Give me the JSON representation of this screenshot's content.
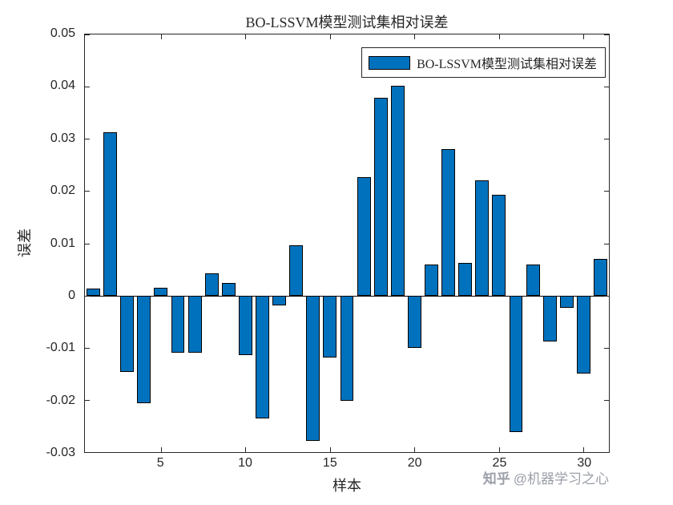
{
  "title": "BO-LSSVM模型测试集相对误差",
  "axes": {
    "xlabel": "样本",
    "ylabel": "误差"
  },
  "legend": {
    "label": "BO-LSSVM模型测试集相对误差"
  },
  "watermark": {
    "brand": "知乎",
    "handle": "@机器学习之心"
  },
  "colors": {
    "bar_fill": "#0072BD",
    "bar_edge": "#000000",
    "axis": "#262626",
    "watermark": "#9b9fa8"
  },
  "chart_data": {
    "type": "bar",
    "title": "BO-LSSVM模型测试集相对误差",
    "xlabel": "样本",
    "ylabel": "误差",
    "legend_entries": [
      "BO-LSSVM模型测试集相对误差"
    ],
    "legend_position": "top-right",
    "grid": false,
    "xlim": [
      0.5,
      31.5
    ],
    "ylim": [
      -0.03,
      0.05
    ],
    "bar_width": 0.8,
    "x": [
      1,
      2,
      3,
      4,
      5,
      6,
      7,
      8,
      9,
      10,
      11,
      12,
      13,
      14,
      15,
      16,
      17,
      18,
      19,
      20,
      21,
      22,
      23,
      24,
      25,
      26,
      27,
      28,
      29,
      30,
      31
    ],
    "values": [
      0.0013,
      0.0313,
      -0.0146,
      -0.0206,
      0.0015,
      -0.0109,
      -0.0109,
      0.0042,
      0.0024,
      -0.0114,
      -0.0235,
      -0.0019,
      0.0096,
      -0.0279,
      -0.0119,
      -0.0201,
      0.0227,
      0.0378,
      0.0401,
      -0.01,
      0.006,
      0.0281,
      0.0063,
      0.022,
      0.0193,
      -0.0262,
      0.006,
      -0.0088,
      -0.0024,
      -0.0149,
      0.007
    ],
    "xticks": [
      5,
      10,
      15,
      20,
      25,
      30
    ],
    "xticklabels": [
      "5",
      "10",
      "15",
      "20",
      "25",
      "30"
    ],
    "yticks": [
      -0.03,
      -0.02,
      -0.01,
      0,
      0.01,
      0.02,
      0.03,
      0.04,
      0.05
    ],
    "yticklabels": [
      "-0.03",
      "-0.02",
      "-0.01",
      "0",
      "0.01",
      "0.02",
      "0.03",
      "0.04",
      "0.05"
    ]
  }
}
